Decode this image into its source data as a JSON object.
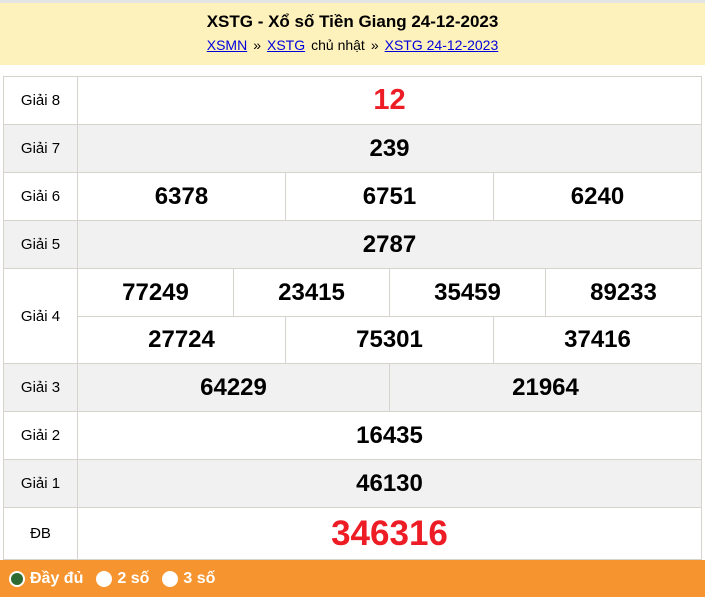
{
  "header": {
    "title": "XSTG - Xổ số Tiền Giang 24-12-2023",
    "breadcrumb": [
      {
        "text": "XSMN",
        "link": true,
        "key": "xsmn"
      },
      {
        "text": "»",
        "link": false,
        "key": "sep-1"
      },
      {
        "text": "XSTG",
        "link": true,
        "key": "xstg"
      },
      {
        "text": "chủ nhật",
        "link": false,
        "key": "chu-nhat"
      },
      {
        "text": "»",
        "link": false,
        "key": "sep-2"
      },
      {
        "text": "XSTG 24-12-2023",
        "link": true,
        "key": "xstg-24-12-2023"
      }
    ]
  },
  "results": {
    "rows": [
      {
        "key": "giai-8",
        "label": "Giải 8",
        "highlight": true,
        "size": "large",
        "cells": [
          [
            "12"
          ]
        ]
      },
      {
        "key": "giai-7",
        "label": "Giải 7",
        "highlight": false,
        "size": "normal",
        "cells": [
          [
            "239"
          ]
        ]
      },
      {
        "key": "giai-6",
        "label": "Giải 6",
        "highlight": false,
        "size": "normal",
        "cells": [
          [
            "6378",
            "6751",
            "6240"
          ]
        ]
      },
      {
        "key": "giai-5",
        "label": "Giải 5",
        "highlight": false,
        "size": "normal",
        "cells": [
          [
            "2787"
          ]
        ]
      },
      {
        "key": "giai-4",
        "label": "Giải 4",
        "highlight": false,
        "size": "normal",
        "cells": [
          [
            "77249",
            "23415",
            "35459",
            "89233"
          ],
          [
            "27724",
            "75301",
            "37416"
          ]
        ]
      },
      {
        "key": "giai-3",
        "label": "Giải 3",
        "highlight": false,
        "size": "normal",
        "cells": [
          [
            "64229",
            "21964"
          ]
        ]
      },
      {
        "key": "giai-2",
        "label": "Giải 2",
        "highlight": false,
        "size": "normal",
        "cells": [
          [
            "16435"
          ]
        ]
      },
      {
        "key": "giai-1",
        "label": "Giải 1",
        "highlight": false,
        "size": "normal",
        "cells": [
          [
            "46130"
          ]
        ]
      },
      {
        "key": "db",
        "label": "ĐB",
        "highlight": true,
        "size": "xlarge",
        "cells": [
          [
            "346316"
          ]
        ]
      }
    ]
  },
  "footer": {
    "options": [
      {
        "key": "day-du",
        "label": "Đầy đủ",
        "selected": true
      },
      {
        "key": "2-so",
        "label": "2 số",
        "selected": false
      },
      {
        "key": "3-so",
        "label": "3 số",
        "selected": false
      }
    ]
  },
  "colors": {
    "header_bg": "#fdf1bc",
    "footer_bg": "#f6952f",
    "highlight_red": "#ed1c25",
    "link_blue": "#0000dd",
    "row_alt_bg": "#f1f1f1",
    "border_color": "#d6d3cc",
    "radio_selected_green": "#2e6b33"
  }
}
